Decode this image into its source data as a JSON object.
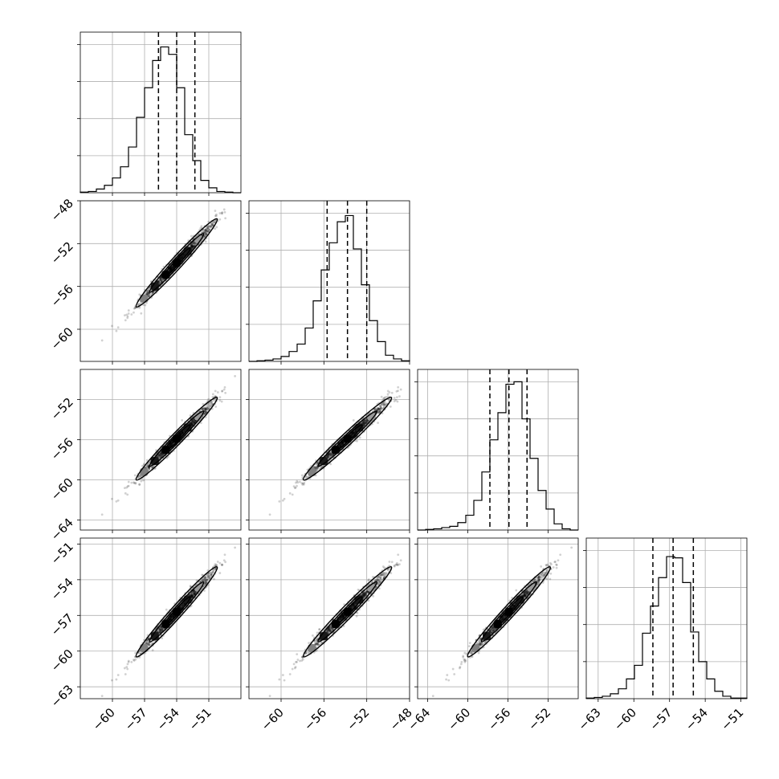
{
  "chart_data": {
    "type": "corner",
    "parameters": [
      {
        "id": "p1",
        "range": [
          -63,
          -48
        ],
        "ticks": [
          {
            "value": -60,
            "label": "−60"
          },
          {
            "value": -57,
            "label": "−57"
          },
          {
            "value": -54,
            "label": "−54"
          },
          {
            "value": -51,
            "label": "−51"
          }
        ],
        "quantiles": [
          -55.7,
          -54.0,
          -52.3
        ],
        "histogram": {
          "edges": [
            -63,
            -62.25,
            -61.5,
            -60.75,
            -60,
            -59.25,
            -58.5,
            -57.75,
            -57,
            -56.25,
            -55.5,
            -54.75,
            -54,
            -53.25,
            -52.5,
            -51.75,
            -51,
            -50.25,
            -49.5,
            -48.75,
            -48
          ],
          "counts": [
            0.5,
            1,
            3,
            6,
            12,
            21,
            37,
            61,
            85,
            107,
            118,
            112,
            85,
            47,
            26,
            10,
            4,
            1,
            0.5,
            0
          ],
          "ymax": 130,
          "yticks": [
            30,
            60,
            90,
            120
          ]
        }
      },
      {
        "id": "p2",
        "range": [
          -63,
          -48
        ],
        "ticks": [
          {
            "value": -60,
            "label": "−60"
          },
          {
            "value": -56,
            "label": "−56"
          },
          {
            "value": -52,
            "label": "−52"
          },
          {
            "value": -48,
            "label": "−48"
          }
        ],
        "quantiles": [
          -55.7,
          -53.8,
          -52.0
        ],
        "histogram": {
          "edges": [
            -63,
            -62.25,
            -61.5,
            -60.75,
            -60,
            -59.25,
            -58.5,
            -57.75,
            -57,
            -56.25,
            -55.5,
            -54.75,
            -54,
            -53.25,
            -52.5,
            -51.75,
            -51,
            -50.25,
            -49.5,
            -48.75,
            -48
          ],
          "counts": [
            0,
            0.5,
            1,
            2,
            4,
            8,
            14,
            27,
            49,
            74,
            96,
            113,
            118,
            91,
            62,
            33,
            16,
            5,
            2,
            0.5
          ],
          "ymax": 130,
          "yticks": [
            30,
            60,
            90,
            120
          ]
        }
      },
      {
        "id": "p3",
        "range": [
          -65,
          -49
        ],
        "ticks": [
          {
            "value": -64,
            "label": "−64"
          },
          {
            "value": -60,
            "label": "−60"
          },
          {
            "value": -56,
            "label": "−56"
          },
          {
            "value": -52,
            "label": "−52"
          }
        ],
        "quantiles": [
          -57.8,
          -55.9,
          -54.1
        ],
        "histogram": {
          "edges": [
            -65,
            -64.2,
            -63.4,
            -62.6,
            -61.8,
            -61,
            -60.2,
            -59.4,
            -58.6,
            -57.8,
            -57,
            -56.2,
            -55.4,
            -54.6,
            -53.8,
            -53,
            -52.2,
            -51.4,
            -50.6,
            -49.8,
            -49
          ],
          "counts": [
            0,
            0.5,
            1,
            2,
            3,
            6,
            12,
            24,
            47,
            73,
            95,
            118,
            120,
            90,
            58,
            32,
            17,
            5,
            1,
            0
          ],
          "ymax": 130,
          "yticks": [
            30,
            60,
            90,
            120
          ]
        }
      },
      {
        "id": "p4",
        "range": [
          -64,
          -50.5
        ],
        "ticks": [
          {
            "value": -63,
            "label": "−63"
          },
          {
            "value": -60,
            "label": "−60"
          },
          {
            "value": -57,
            "label": "−57"
          },
          {
            "value": -54,
            "label": "−54"
          },
          {
            "value": -51,
            "label": "−51"
          }
        ],
        "quantiles": [
          -58.4,
          -56.7,
          -55.0
        ],
        "histogram": {
          "edges": [
            -64,
            -63.325,
            -62.65,
            -61.975,
            -61.3,
            -60.625,
            -59.95,
            -59.275,
            -58.6,
            -57.925,
            -57.25,
            -56.575,
            -55.9,
            -55.225,
            -54.55,
            -53.875,
            -53.2,
            -52.525,
            -51.85,
            -51.175,
            -50.5
          ],
          "counts": [
            0.5,
            1,
            2,
            4,
            8,
            16,
            27,
            53,
            75,
            98,
            115,
            114,
            94,
            54,
            30,
            16,
            6,
            2,
            0.5,
            0.5
          ],
          "ymax": 130,
          "yticks": [
            30,
            60,
            90,
            120
          ]
        }
      }
    ],
    "correlation": 0.985,
    "levels": [
      0.5,
      1.0,
      1.5
    ],
    "grid": true
  }
}
